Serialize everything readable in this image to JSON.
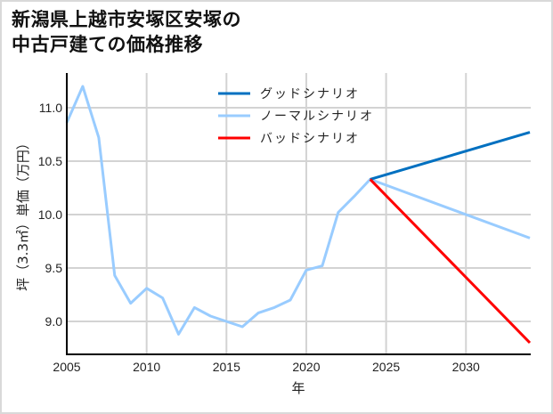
{
  "title_lines": [
    "新潟県上越市安塚区安塚の",
    "中古戸建ての価格推移"
  ],
  "chart_data": {
    "type": "line",
    "title": "新潟県上越市安塚区安塚の中古戸建ての価格推移",
    "xlabel": "年",
    "ylabel": "坪（3.3㎡）単価（万円）",
    "xlim": [
      2005,
      2034
    ],
    "ylim": [
      8.7,
      11.33
    ],
    "xticks": [
      2005,
      2010,
      2015,
      2020,
      2025,
      2030
    ],
    "yticks": [
      9.0,
      9.5,
      10.0,
      10.5,
      11.0
    ],
    "ytick_labels": [
      "9.0",
      "9.5",
      "10.0",
      "10.5",
      "11.0"
    ],
    "grid": true,
    "legend_position": "upper center",
    "series": [
      {
        "name": "グッドシナリオ",
        "color": "#0070c0",
        "x": [
          2024,
          2034
        ],
        "values": [
          10.33,
          10.77
        ]
      },
      {
        "name": "ノーマルシナリオ",
        "color": "#99ccff",
        "x": [
          2005,
          2006,
          2007,
          2008,
          2009,
          2010,
          2011,
          2012,
          2013,
          2014,
          2015,
          2016,
          2017,
          2018,
          2019,
          2020,
          2021,
          2022,
          2023,
          2024,
          2034
        ],
        "values": [
          10.86,
          11.2,
          10.72,
          9.43,
          9.17,
          9.31,
          9.22,
          8.88,
          9.13,
          9.05,
          9.0,
          8.95,
          9.08,
          9.13,
          9.2,
          9.48,
          9.52,
          10.02,
          10.17,
          10.33,
          9.78
        ]
      },
      {
        "name": "バッドシナリオ",
        "color": "#ff0000",
        "x": [
          2024,
          2034
        ],
        "values": [
          10.33,
          8.8
        ]
      }
    ]
  }
}
